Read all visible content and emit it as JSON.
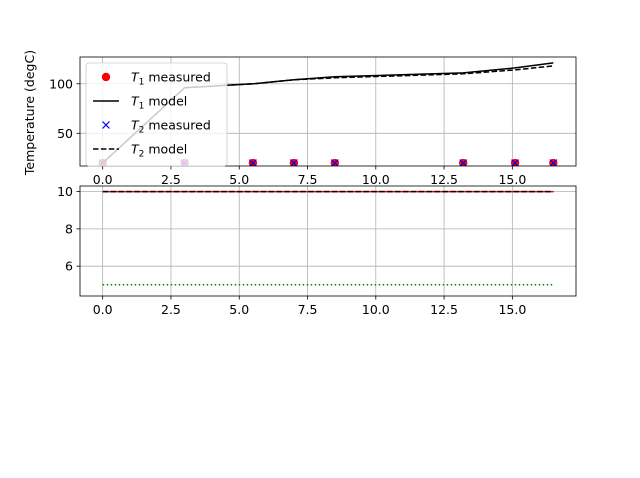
{
  "chart_data": [
    {
      "type": "line",
      "ylabel": "Temperature (degC)",
      "xlim": [
        -0.83,
        17.33
      ],
      "ylim": [
        17,
        127
      ],
      "grid": true,
      "legend_placement": "top-left",
      "xticks": [
        0.0,
        2.5,
        5.0,
        7.5,
        10.0,
        12.5,
        15.0
      ],
      "xtick_labels": [
        "0.0",
        "2.5",
        "5.0",
        "7.5",
        "10.0",
        "12.5",
        "15.0"
      ],
      "yticks": [
        50,
        100
      ],
      "ytick_labels": [
        "50",
        "100"
      ],
      "legend": [
        {
          "label_main": "T",
          "label_sub": "1",
          "label_rest": " measured",
          "marker": "circle",
          "color": "#ff0000"
        },
        {
          "label_main": "T",
          "label_sub": "1",
          "label_rest": " model",
          "marker": "solid-line",
          "color": "#000000"
        },
        {
          "label_main": "T",
          "label_sub": "2",
          "label_rest": " measured",
          "marker": "x",
          "color": "#0000ff"
        },
        {
          "label_main": "T",
          "label_sub": "2",
          "label_rest": " model",
          "marker": "dashed-line",
          "color": "#000000"
        }
      ],
      "series": [
        {
          "name": "T1 measured",
          "kind": "circle",
          "color": "#ff0000",
          "x": [
            0.0,
            3.0,
            5.5,
            7.0,
            8.5,
            13.2,
            15.1,
            16.5
          ],
          "y": [
            20,
            20,
            20,
            20,
            20,
            20,
            20,
            20
          ]
        },
        {
          "name": "T1 model",
          "kind": "solid",
          "color": "#000000",
          "x": [
            0.0,
            3.0,
            5.5,
            7.0,
            8.5,
            13.2,
            15.1,
            16.5
          ],
          "y": [
            20,
            96,
            100,
            104,
            107,
            111,
            116,
            121
          ]
        },
        {
          "name": "T2 measured",
          "kind": "x",
          "color": "#0000ff",
          "x": [
            0.0,
            3.0,
            5.5,
            7.0,
            8.5,
            13.2,
            15.1,
            16.5
          ],
          "y": [
            20,
            20,
            20,
            20,
            20,
            20,
            20,
            20
          ]
        },
        {
          "name": "T2 model",
          "kind": "dashed",
          "color": "#000000",
          "x": [
            0.0,
            3.0,
            5.5,
            7.0,
            8.5,
            13.2,
            15.1,
            16.5
          ],
          "y": [
            20,
            96,
            100,
            104,
            106,
            110,
            114,
            118
          ]
        }
      ]
    },
    {
      "type": "line",
      "xlim": [
        -0.83,
        17.33
      ],
      "ylim": [
        4.4,
        10.3
      ],
      "grid": true,
      "xticks": [
        0.0,
        2.5,
        5.0,
        7.5,
        10.0,
        12.5,
        15.0
      ],
      "xtick_labels": [
        "0.0",
        "2.5",
        "5.0",
        "7.5",
        "10.0",
        "12.5",
        "15.0"
      ],
      "yticks": [
        6,
        8,
        10
      ],
      "ytick_labels": [
        "6",
        "8",
        "10"
      ],
      "series": [
        {
          "kind": "solid",
          "color": "#ff0000",
          "x": [
            0.0,
            16.5
          ],
          "y": [
            10,
            10
          ]
        },
        {
          "kind": "dashed",
          "color": "#000000",
          "x": [
            0.0,
            16.5
          ],
          "y": [
            10,
            10
          ]
        },
        {
          "kind": "dotted",
          "color": "#008000",
          "x": [
            0.0,
            16.5
          ],
          "y": [
            5,
            5
          ]
        }
      ]
    }
  ]
}
